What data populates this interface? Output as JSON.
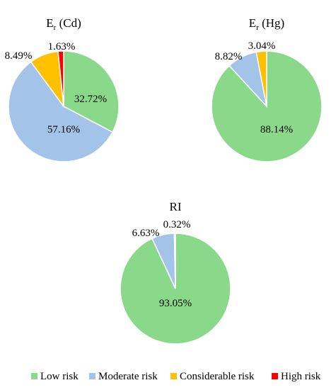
{
  "colors": {
    "low": "#8ad98a",
    "moderate": "#a4c3e8",
    "considerable": "#ffc000",
    "high": "#ff0000"
  },
  "legend": [
    {
      "key": "low",
      "label": "Low risk"
    },
    {
      "key": "moderate",
      "label": "Moderate risk"
    },
    {
      "key": "considerable",
      "label": "Considerable risk"
    },
    {
      "key": "high",
      "label": "High risk"
    }
  ],
  "chart_data": [
    {
      "type": "pie",
      "title_main": "E",
      "title_sub": "r",
      "title_rest": " (Cd)",
      "slices": [
        {
          "key": "low",
          "value": 32.72,
          "label": "32.72%"
        },
        {
          "key": "moderate",
          "value": 57.16,
          "label": "57.16%"
        },
        {
          "key": "considerable",
          "value": 8.49,
          "label": "8.49%"
        },
        {
          "key": "high",
          "value": 1.63,
          "label": "1.63%"
        }
      ]
    },
    {
      "type": "pie",
      "title_main": "E",
      "title_sub": "r",
      "title_rest": " (Hg)",
      "slices": [
        {
          "key": "low",
          "value": 88.14,
          "label": "88.14%"
        },
        {
          "key": "moderate",
          "value": 8.82,
          "label": "8.82%"
        },
        {
          "key": "considerable",
          "value": 3.04,
          "label": "3.04%"
        }
      ]
    },
    {
      "type": "pie",
      "title_main": "RI",
      "title_sub": "",
      "title_rest": "",
      "slices": [
        {
          "key": "low",
          "value": 93.05,
          "label": "93.05%"
        },
        {
          "key": "moderate",
          "value": 6.63,
          "label": "6.63%"
        },
        {
          "key": "considerable",
          "value": 0.32,
          "label": "0.32%"
        }
      ]
    }
  ]
}
